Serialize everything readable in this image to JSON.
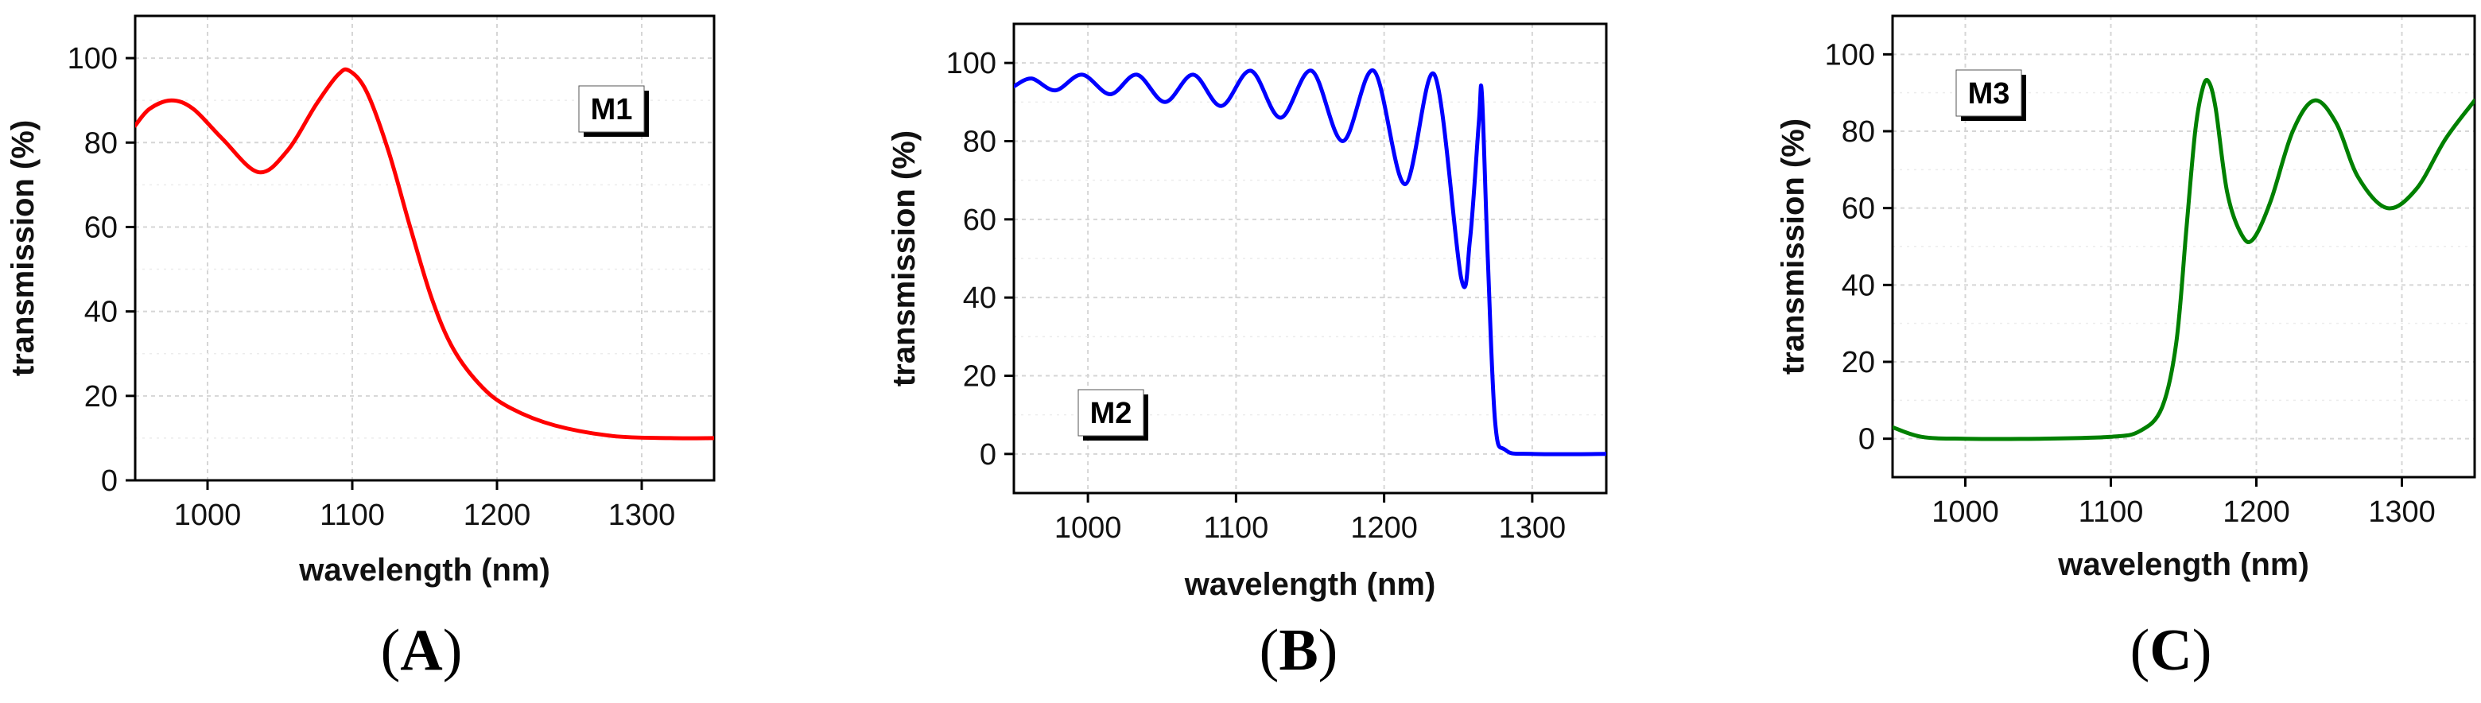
{
  "chart_data": [
    {
      "type": "line",
      "panel": "A",
      "label": "M1",
      "xlabel": "wavelength (nm)",
      "ylabel": "transmission (%)",
      "xlim": [
        950,
        1350
      ],
      "ylim": [
        0,
        110
      ],
      "xticks": [
        1000,
        1100,
        1200,
        1300
      ],
      "yticks": [
        0,
        20,
        40,
        60,
        80,
        100
      ],
      "grid": true,
      "color": "#ff0000",
      "series": [
        {
          "name": "M1",
          "x": [
            950,
            960,
            975,
            990,
            1010,
            1035,
            1055,
            1075,
            1090,
            1098,
            1110,
            1125,
            1140,
            1155,
            1170,
            1190,
            1210,
            1240,
            1280,
            1320,
            1350
          ],
          "y": [
            84,
            88,
            90,
            88,
            81,
            73,
            78,
            89,
            96,
            97,
            92,
            78,
            60,
            43,
            31,
            22,
            17,
            13,
            10.5,
            10,
            10
          ]
        }
      ]
    },
    {
      "type": "line",
      "panel": "B",
      "label": "M2",
      "xlabel": "wavelength (nm)",
      "ylabel": "transmission (%)",
      "xlim": [
        950,
        1350
      ],
      "ylim": [
        -10,
        110
      ],
      "xticks": [
        1000,
        1100,
        1200,
        1300
      ],
      "yticks": [
        0,
        20,
        40,
        60,
        80,
        100
      ],
      "grid": true,
      "color": "#0000ff",
      "series": [
        {
          "name": "M2",
          "x": [
            950,
            962,
            978,
            996,
            1015,
            1033,
            1052,
            1071,
            1090,
            1110,
            1130,
            1151,
            1172,
            1193,
            1214,
            1234,
            1252,
            1258,
            1264,
            1266,
            1270,
            1275,
            1282,
            1300,
            1350
          ],
          "y": [
            94,
            96,
            93,
            97,
            92,
            97,
            90,
            97,
            89,
            98,
            86,
            98,
            80,
            98,
            69,
            97,
            45,
            55,
            85,
            92,
            50,
            8,
            1,
            0,
            0
          ]
        }
      ]
    },
    {
      "type": "line",
      "panel": "C",
      "label": "M3",
      "xlabel": "wavelength (nm)",
      "ylabel": "transmission (%)",
      "xlim": [
        950,
        1350
      ],
      "ylim": [
        -10,
        110
      ],
      "xticks": [
        1000,
        1100,
        1200,
        1300
      ],
      "yticks": [
        0,
        20,
        40,
        60,
        80,
        100
      ],
      "grid": true,
      "color": "#008000",
      "series": [
        {
          "name": "M3",
          "x": [
            950,
            970,
            1000,
            1050,
            1100,
            1120,
            1135,
            1145,
            1152,
            1158,
            1163,
            1167,
            1172,
            1180,
            1190,
            1198,
            1210,
            1225,
            1240,
            1255,
            1270,
            1290,
            1310,
            1330,
            1350
          ],
          "y": [
            3,
            0.5,
            0,
            0,
            0.5,
            2,
            8,
            25,
            55,
            80,
            91,
            93,
            86,
            64,
            53,
            52,
            62,
            80,
            88,
            82,
            68,
            60,
            65,
            78,
            88
          ]
        }
      ]
    }
  ],
  "captions": [
    {
      "open": "(",
      "letter": "A",
      "close": ")"
    },
    {
      "open": "(",
      "letter": "B",
      "close": ")"
    },
    {
      "open": "(",
      "letter": "C",
      "close": ")"
    }
  ]
}
